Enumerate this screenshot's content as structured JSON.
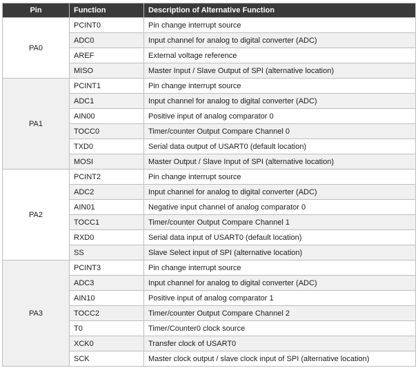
{
  "headers": {
    "pin": "Pin",
    "function": "Function",
    "description": "Description of Alternative Function"
  },
  "groups": [
    {
      "pin": "PA0",
      "rows": [
        {
          "fn": "PCINT0",
          "desc": "Pin change interrupt source"
        },
        {
          "fn": "ADC0",
          "desc": "Input channel for analog to digital converter (ADC)"
        },
        {
          "fn": "AREF",
          "desc": "External voltage reference"
        },
        {
          "fn": "MISO",
          "desc": "Master Input / Slave Output of SPI (alternative location)"
        }
      ]
    },
    {
      "pin": "PA1",
      "rows": [
        {
          "fn": "PCINT1",
          "desc": "Pin change interrupt source"
        },
        {
          "fn": "ADC1",
          "desc": "Input channel for analog to digital converter (ADC)"
        },
        {
          "fn": "AIN00",
          "desc": "Positive input of analog comparator 0"
        },
        {
          "fn": "TOCC0",
          "desc": "Timer/counter Output Compare Channel 0"
        },
        {
          "fn": "TXD0",
          "desc": "Serial data output of USART0 (default location)"
        },
        {
          "fn": "MOSI",
          "desc": "Master Output / Slave Input of SPI (alternative location)"
        }
      ]
    },
    {
      "pin": "PA2",
      "rows": [
        {
          "fn": "PCINT2",
          "desc": "Pin change interrupt source"
        },
        {
          "fn": "ADC2",
          "desc": "Input channel for analog to digital converter (ADC)"
        },
        {
          "fn": "AIN01",
          "desc": "Negative input channel of analog comparator 0"
        },
        {
          "fn": "TOCC1",
          "desc": "Timer/counter Output Compare Channel 1"
        },
        {
          "fn": "RXD0",
          "desc": "Serial data input of USART0 (default location)"
        },
        {
          "fn": "SS",
          "desc": "Slave Select input of SPI (alternative location)"
        }
      ]
    },
    {
      "pin": "PA3",
      "rows": [
        {
          "fn": "PCINT3",
          "desc": "Pin change interrupt source"
        },
        {
          "fn": "ADC3",
          "desc": "Input channel for analog to digital converter (ADC)"
        },
        {
          "fn": "AIN10",
          "desc": "Positive input of analog comparator 1"
        },
        {
          "fn": "TOCC2",
          "desc": "Timer/counter Output Compare Channel 2"
        },
        {
          "fn": "T0",
          "desc": "Timer/Counter0 clock source"
        },
        {
          "fn": "XCK0",
          "desc": "Transfer clock of USART0"
        },
        {
          "fn": "SCK",
          "desc": "Master clock output / slave clock input of SPI (alternative location)"
        }
      ]
    }
  ]
}
